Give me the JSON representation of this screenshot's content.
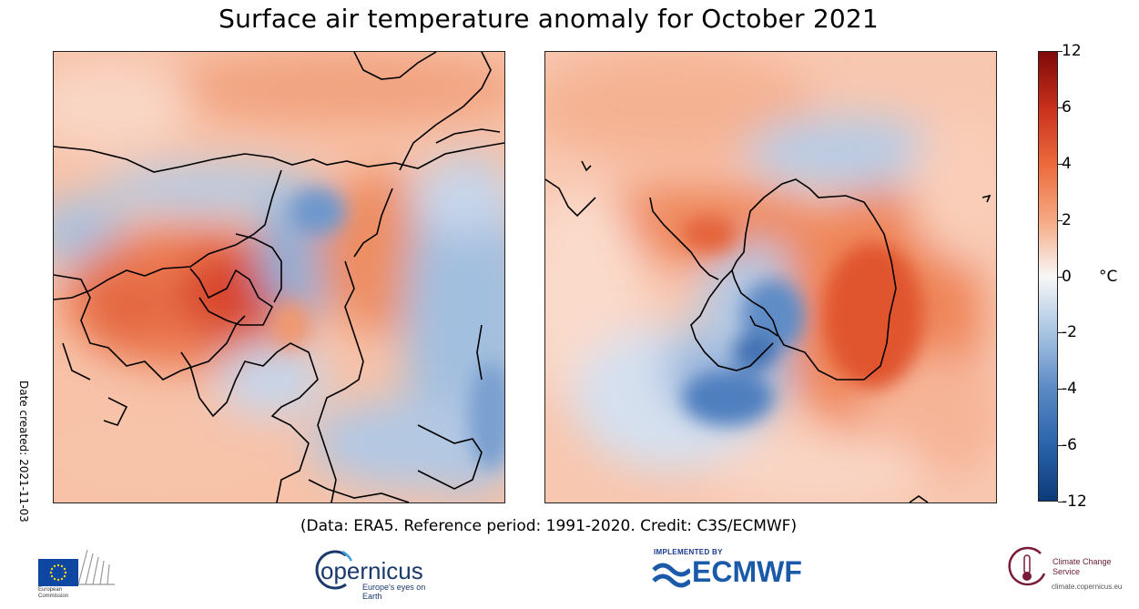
{
  "chart_data": {
    "type": "heatmap",
    "title": "Surface air temperature anomaly for October 2021",
    "panels": [
      "Northern hemisphere polar view",
      "Southern hemisphere polar view"
    ],
    "colorbar": {
      "ticks": [
        "12",
        "6",
        "4",
        "2",
        "0",
        "-2",
        "-4",
        "-6",
        "-12"
      ],
      "unit": "°C",
      "range": [
        -12,
        12
      ],
      "low_color": "#0d3a78",
      "mid_color": "#f7f7f7",
      "high_color": "#7f0a0a"
    }
  },
  "credit": "(Data: ERA5.  Reference period: 1991-2020.  Credit: C3S/ECMWF)",
  "date_created": "Date created: 2021-11-03",
  "logos": {
    "ec_text_1": "European",
    "ec_text_2": "Commission",
    "copernicus": "opernicus",
    "copernicus_tagline": "Europe's eyes on Earth",
    "ecmwf_implemented": "IMPLEMENTED BY",
    "ecmwf": "ECMWF",
    "c3s_name": "Climate Change Service",
    "c3s_url": "climate.copernicus.eu"
  }
}
